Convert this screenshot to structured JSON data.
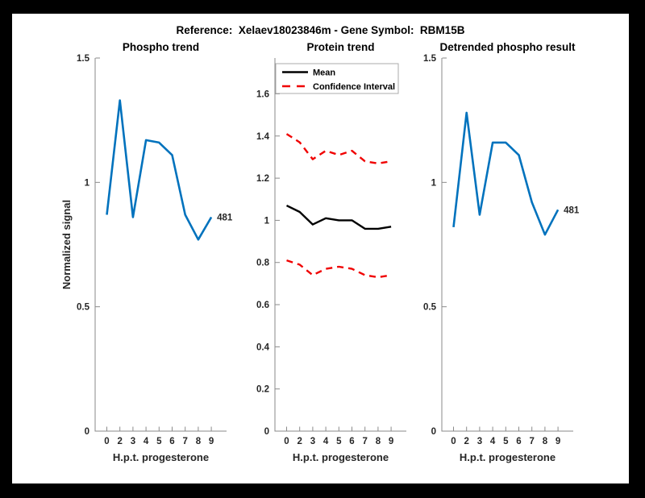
{
  "figure": {
    "title": "Reference:  Xelaev18023846m - Gene Symbol:  RBM15B"
  },
  "palette": {
    "blue": "#0072bd",
    "red": "#f00000",
    "black": "#000000",
    "axis_line": "#8a8a8a",
    "tick_text": "#262626",
    "frame": "#000000",
    "canvas": "#ffffff",
    "legend_border": "#ababab"
  },
  "chart_data": [
    {
      "type": "line",
      "title": "Phospho trend",
      "xlabel": "H.p.t. progesterone",
      "ylabel": "Normalized signal",
      "x_tick_labels": [
        "0",
        "2",
        "3",
        "4",
        "5",
        "6",
        "7",
        "8",
        "9"
      ],
      "y_ticks": [
        {
          "v": 0,
          "label": "0"
        },
        {
          "v": 0.5,
          "label": "0.5"
        },
        {
          "v": 1,
          "label": "1"
        },
        {
          "v": 1.5,
          "label": "1.5"
        }
      ],
      "ylim": [
        0,
        1.5
      ],
      "grid": false,
      "series": [
        {
          "name": "phospho-signal",
          "color": "blue",
          "dash": false,
          "width": 2.6,
          "values": [
            0.87,
            1.33,
            0.86,
            1.17,
            1.16,
            1.11,
            0.87,
            0.77,
            0.86
          ]
        }
      ],
      "end_label": "481"
    },
    {
      "type": "line",
      "title": "Protein trend",
      "xlabel": "H.p.t. progesterone",
      "ylabel": "",
      "x_tick_labels": [
        "0",
        "2",
        "3",
        "4",
        "5",
        "6",
        "7",
        "8",
        "9"
      ],
      "y_ticks": [
        {
          "v": 0,
          "label": "0"
        },
        {
          "v": 0.2,
          "label": "0.2"
        },
        {
          "v": 0.4,
          "label": "0.4"
        },
        {
          "v": 0.6,
          "label": "0.6"
        },
        {
          "v": 0.8,
          "label": "0.8"
        },
        {
          "v": 1,
          "label": "1"
        },
        {
          "v": 1.2,
          "label": "1.2"
        },
        {
          "v": 1.4,
          "label": "1.4"
        },
        {
          "v": 1.6,
          "label": "1.6"
        }
      ],
      "ylim": [
        0,
        1.77
      ],
      "grid": false,
      "legend": {
        "position": "top-left",
        "entries": [
          {
            "label": "Mean",
            "color": "black",
            "dash": false
          },
          {
            "label": "Confidence Interval",
            "color": "red",
            "dash": true
          }
        ]
      },
      "series": [
        {
          "name": "mean",
          "color": "black",
          "dash": false,
          "width": 2.4,
          "values": [
            1.07,
            1.04,
            0.98,
            1.01,
            1.0,
            1.0,
            0.96,
            0.96,
            0.97
          ]
        },
        {
          "name": "ci-upper",
          "color": "red",
          "dash": true,
          "width": 2.4,
          "values": [
            1.41,
            1.37,
            1.29,
            1.33,
            1.31,
            1.33,
            1.28,
            1.27,
            1.28
          ]
        },
        {
          "name": "ci-lower",
          "color": "red",
          "dash": true,
          "width": 2.4,
          "values": [
            0.81,
            0.79,
            0.74,
            0.77,
            0.78,
            0.77,
            0.74,
            0.73,
            0.74
          ]
        }
      ]
    },
    {
      "type": "line",
      "title": "Detrended phospho result",
      "xlabel": "H.p.t. progesterone",
      "ylabel": "",
      "x_tick_labels": [
        "0",
        "2",
        "3",
        "4",
        "5",
        "6",
        "7",
        "8",
        "9"
      ],
      "y_ticks": [
        {
          "v": 0,
          "label": "0"
        },
        {
          "v": 0.5,
          "label": "0.5"
        },
        {
          "v": 1,
          "label": "1"
        },
        {
          "v": 1.5,
          "label": "1.5"
        }
      ],
      "ylim": [
        0,
        1.5
      ],
      "grid": false,
      "series": [
        {
          "name": "detrended-phospho",
          "color": "blue",
          "dash": false,
          "width": 2.6,
          "values": [
            0.82,
            1.28,
            0.87,
            1.16,
            1.16,
            1.11,
            0.92,
            0.79,
            0.89
          ]
        }
      ],
      "end_label": "481"
    }
  ]
}
